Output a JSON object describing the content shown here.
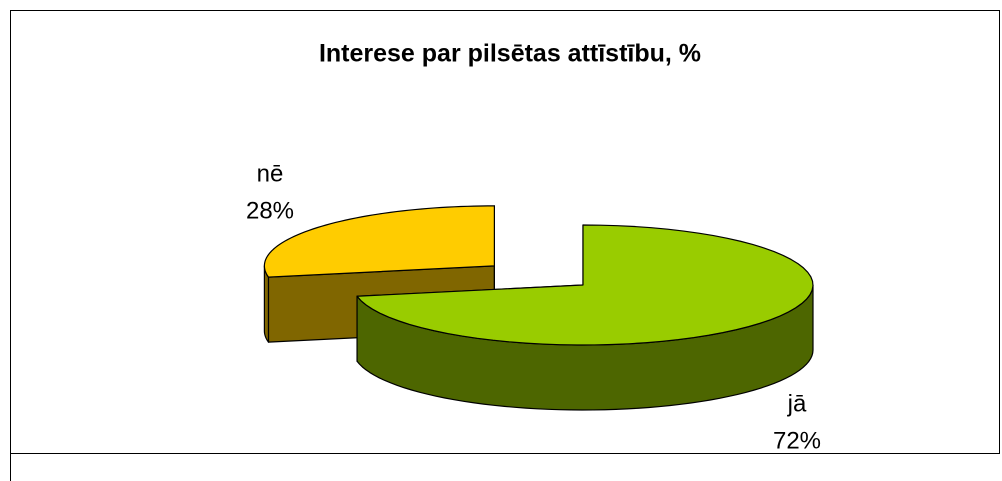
{
  "chart_data": {
    "type": "pie3d",
    "title": "Interese par pilsētas attīstību, %",
    "categories": [
      "jā",
      "nē"
    ],
    "values": [
      72,
      28
    ],
    "value_labels": [
      "72%",
      "28%"
    ],
    "colors": [
      "#99cc00",
      "#ffcc00"
    ],
    "side_colors": [
      "#4d6600",
      "#806600"
    ]
  }
}
